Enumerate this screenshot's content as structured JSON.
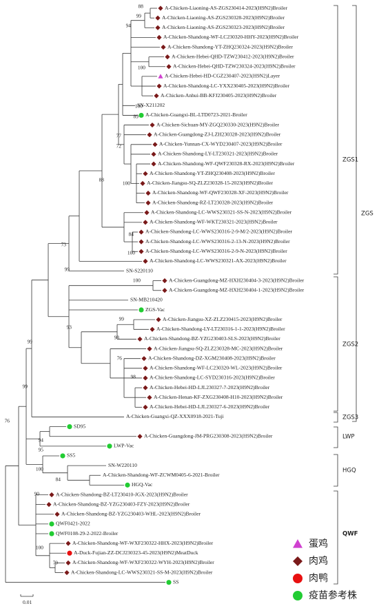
{
  "leaves": [
    {
      "label": "A-Chicken-Liaoning-AS-ZGS230414-2023(H9N2)Broiler",
      "marker": "diamond"
    },
    {
      "label": "A-Chicken-Liaoning-AS-ZGS230328-2023(H9N2)Broiler",
      "marker": "diamond"
    },
    {
      "label": "A-Chicken-Liaoning-AS-ZGS230323-2023(H9N2)Broiler",
      "marker": "diamond"
    },
    {
      "label": "A-Chicken-Shandong-WF-LC230320-HHY-2023(H9N2)Broiler",
      "marker": "diamond"
    },
    {
      "label": "A-Chicken-Shandong-YT-ZHQ230324-2023(H9N2)Broiler",
      "marker": "diamond"
    },
    {
      "label": "A-Chicken-Hebei-QHD-TZW230412-2023(H9N2)Broiler",
      "marker": "diamond"
    },
    {
      "label": "A-Chicken-Hebei-QHD-TZW230324-2023(H9N2)Broiler",
      "marker": "diamond"
    },
    {
      "label": "A-Chicken-Hebei-HD-CGZ230407-2023(H9N2)Layer",
      "marker": "triangle"
    },
    {
      "label": "A-Chicken-Shandong-LC-YXX230405-2023(H9N2)Broiler",
      "marker": "diamond"
    },
    {
      "label": "A-Chicken-Anhui-BB-KFJ230405-2023(H9N2)Broiler",
      "marker": "diamond"
    },
    {
      "label": "SN-X211202"
    },
    {
      "label": "A-Chicken-Guangxi-BL-LTD0723-2021-Broiler",
      "marker": "vaccine"
    },
    {
      "label": "A-Chicken-Sichuan-MY-ZGQ230330-2023(H9N2)Broiler",
      "marker": "diamond"
    },
    {
      "label": "A-Chicken-Guangdong-ZJ-LZH230328-2023(H9N2)Broiler",
      "marker": "diamond"
    },
    {
      "label": "A-Chicken-Yunnan-CX-WYD230407-2023(H9N2)Broiler",
      "marker": "diamond"
    },
    {
      "label": "A-Chicken-Shandong-LY-LT230321-2023(H9N2)Broiler",
      "marker": "diamond"
    },
    {
      "label": "A-Chicken-Shandong-WF-QWF230328-RX-2023(H9N2)Broiler",
      "marker": "diamond"
    },
    {
      "label": "A-Chicken-Shandong-YT-ZHQ230408-2023(H9N2)Broiler",
      "marker": "diamond"
    },
    {
      "label": "A-Chicken-Jiangsu-SQ-ZLZ230328-15-2023(H9N2)Broiler",
      "marker": "diamond"
    },
    {
      "label": "A-Chicken-Shandong-WF-QWF230328-XF-2023(H9N2)Broiler",
      "marker": "diamond"
    },
    {
      "label": "A-Chicken-Shandong-RZ-LT230328-2023(H9N2)Broiler",
      "marker": "diamond"
    },
    {
      "label": "A-Chicken-Shandong-LC-WWS230321-SS-N-2023(H9N2)Broiler",
      "marker": "diamond"
    },
    {
      "label": "A-Chicken-Shandong-WF-WKT230321-2023(H9N2)Broiler",
      "marker": "diamond"
    },
    {
      "label": "A-Chicken-Shandong-LC-WWS230316-2-9-M/2-2023(H9N2)Broiler",
      "marker": "diamond"
    },
    {
      "label": "A-Chicken-Shandong-LC-WWS230316-2-13-N-2023(H9N2)Broiler",
      "marker": "diamond"
    },
    {
      "label": "A-Chicken-Shandong-LC-WWS230316-2-9-N-2023(H9N2)Broiler",
      "marker": "diamond"
    },
    {
      "label": "A-Chicken-Shandong-LC-WWS230321-AX-2023(H9N2)Broiler",
      "marker": "diamond"
    },
    {
      "label": "SN-S220110"
    },
    {
      "label": "A-Chicken-Guangdong-MZ-HXH230404-3-2023(H9N2)Broiler",
      "marker": "diamond"
    },
    {
      "label": "A-Chicken-Guangdong-MZ-HXH230404-1-2023(H9N2)Broiler",
      "marker": "diamond"
    },
    {
      "label": "SN-MB210420"
    },
    {
      "label": "ZGS-Vac",
      "marker": "vaccine"
    },
    {
      "label": "A-Chicken-Jiangsu-XZ-ZLZ230415-2023(H9N2)Broiler",
      "marker": "diamond"
    },
    {
      "label": "A-Chicken-Shandong-LY-LT230316-1-1-2023(H9N2)Broiler",
      "marker": "diamond"
    },
    {
      "label": "A-Chicken-Shandong-BZ-YZG230403-SLS-2023(H9N2)Broiler",
      "marker": "diamond"
    },
    {
      "label": "A-Chicken-Jiangsu-SQ-ZLZ230328-MC-2023(H9N2)Broiler",
      "marker": "diamond"
    },
    {
      "label": "A-Chicken-Shandong-DZ-XGM230408-2023(H9N2)Broiler",
      "marker": "diamond"
    },
    {
      "label": "A-Chicken-Shandong-WF-LC230320-WL-2023(H9N2)Broiler",
      "marker": "diamond"
    },
    {
      "label": "A-Chicken-Shandong-LC-SYD230316-2023(H9N2)Broiler",
      "marker": "diamond"
    },
    {
      "label": "A-Chicken-Hebei-HD-LJL230327-7-2023(H9N2)Broiler",
      "marker": "diamond"
    },
    {
      "label": "A-Chicken-Henan-KF-ZXG230408-H10-2023(H9N2)Broiler",
      "marker": "diamond"
    },
    {
      "label": "A-Chicken-Hebei-HD-LJL230327-6-2023(H9N2)Broiler",
      "marker": "diamond"
    },
    {
      "label": "A-Chicken-Guangxi-QZ-XXX0918-2021-Tuji"
    },
    {
      "label": "SD95",
      "marker": "vaccine"
    },
    {
      "label": "A-Chicken-Guangdong-JM-PRG230308-2023(H9N2)Broiler",
      "marker": "diamond"
    },
    {
      "label": "LWP-Vac",
      "marker": "vaccine"
    },
    {
      "label": "SS5",
      "marker": "vaccine"
    },
    {
      "label": "SN-W220110"
    },
    {
      "label": "A-Chicken-Shandong-WF-ZCWM0405-6-2021-Broiler"
    },
    {
      "label": "HGQ-Vac",
      "marker": "vaccine"
    },
    {
      "label": "A-Chicken-Shandong-BZ-LT230410-JGX-2023(H9N2)Broiler",
      "marker": "diamond"
    },
    {
      "label": "A-Chicken-Shandong-BZ-YZG230403-FZY-2023(H9N2)Broiler",
      "marker": "diamond"
    },
    {
      "label": "A-Chicken-Shandong-BZ-YZG230403-WHL-2023(H9N2)Broiler",
      "marker": "diamond"
    },
    {
      "label": "QWF0421-2022",
      "marker": "vaccine"
    },
    {
      "label": "QWF0108-29-2-2022-Broiler",
      "marker": "vaccine"
    },
    {
      "label": "A-Chicken-Shandong-WF-WXF230322-HHX-2023(H9N2)Broiler",
      "marker": "diamond"
    },
    {
      "label": "A-Duck-Fujian-ZZ-DCJ230323-45-2023(H9N2)MeatDuck",
      "marker": "duck"
    },
    {
      "label": "A-Chicken-Shandong-WF-WXF230322-WYH-2023(H9N2)Broiler",
      "marker": "diamond"
    },
    {
      "label": "A-Chicken-Shandong-LC-WWS230321-SS-M-2023(H9N2)Broiler",
      "marker": "diamond"
    },
    {
      "label": "SS",
      "marker": "vaccine"
    }
  ],
  "bootstraps": [
    88,
    99,
    94,
    100,
    100,
    89,
    77,
    72,
    100,
    88,
    84,
    100,
    73,
    99,
    100,
    93,
    99,
    98,
    76,
    98,
    99,
    99,
    76,
    94,
    95,
    100,
    84,
    90,
    100,
    79
  ],
  "clades": [
    {
      "label": "ZGS1"
    },
    {
      "label": "ZGS"
    },
    {
      "label": "ZGS2"
    },
    {
      "label": "ZGS3"
    },
    {
      "label": "LWP"
    },
    {
      "label": "HGQ"
    },
    {
      "label": "QWF"
    }
  ],
  "marker_colors": {
    "diamond": "#7a1a1a",
    "triangle": "#d040d0",
    "duck": "#e81010",
    "vaccine": "#22cc33"
  },
  "legend": [
    {
      "marker": "triangle",
      "label": "蛋鸡"
    },
    {
      "marker": "diamond",
      "label": "肉鸡"
    },
    {
      "marker": "duck",
      "label": "肉鸭"
    },
    {
      "marker": "vaccine",
      "label": "疫苗参考株"
    }
  ],
  "scale_bar": {
    "label": "0.01"
  }
}
